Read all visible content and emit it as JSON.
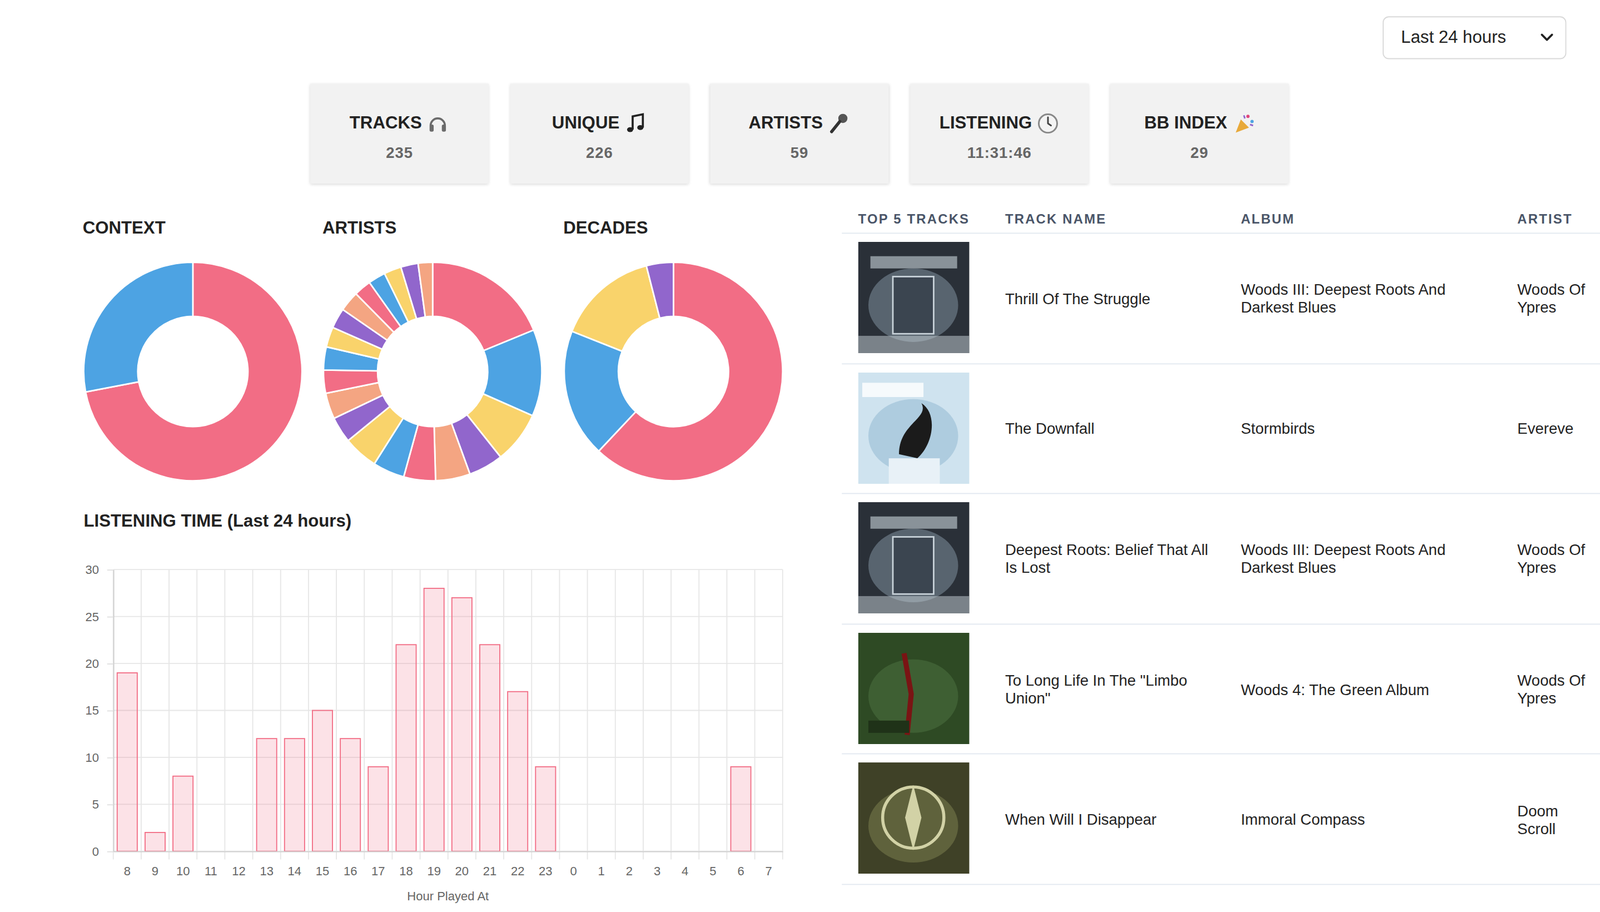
{
  "filter": "Last 24 hours",
  "stats": [
    {
      "label": "TRACKS",
      "value": 235
    },
    {
      "label": "UNIQUE",
      "value": 226
    },
    {
      "label": "ARTISTS",
      "value": 59
    },
    {
      "label": "LISTENING",
      "value": "11:31:46"
    },
    {
      "label": "BB INDEX",
      "value": 29
    }
  ],
  "chart_data": [
    {
      "type": "doughnut",
      "title": "CONTEXT",
      "values": [
        72,
        28
      ],
      "colors": [
        "#f26d85",
        "#4da3e3"
      ]
    },
    {
      "type": "doughnut",
      "title": "ARTISTS",
      "values": [
        44,
        30,
        18,
        12,
        12,
        11,
        11,
        12,
        9,
        9,
        8,
        8,
        7,
        7,
        7,
        6,
        6,
        6,
        6,
        5
      ],
      "colors": [
        "#f26d85",
        "#4da3e3",
        "#f9d36b",
        "#9166cc",
        "#f4a582",
        "#f26d85",
        "#4da3e3",
        "#f9d36b",
        "#9166cc",
        "#f4a582",
        "#f26d85",
        "#4da3e3",
        "#f9d36b",
        "#9166cc",
        "#f4a582",
        "#f26d85",
        "#4da3e3",
        "#f9d36b",
        "#9166cc",
        "#f4a582"
      ]
    },
    {
      "type": "doughnut",
      "title": "DECADES",
      "values": [
        62,
        19,
        15,
        4
      ],
      "colors": [
        "#f26d85",
        "#4da3e3",
        "#f9d36b",
        "#9166cc"
      ]
    },
    {
      "type": "bar",
      "title": "LISTENING TIME (Last 24 hours)",
      "x_label": "Hour Played At",
      "categories": [
        "8",
        "9",
        "10",
        "11",
        "12",
        "13",
        "14",
        "15",
        "16",
        "17",
        "18",
        "19",
        "20",
        "21",
        "22",
        "23",
        "0",
        "1",
        "2",
        "3",
        "4",
        "5",
        "6",
        "7"
      ],
      "values": [
        19,
        2,
        8,
        0,
        0,
        12,
        12,
        15,
        12,
        9,
        22,
        28,
        27,
        22,
        17,
        9,
        0,
        0,
        0,
        0,
        0,
        0,
        9,
        0
      ],
      "color": "#f26d85",
      "ylim": [
        0,
        30
      ],
      "yticks": [
        0,
        5,
        10,
        15,
        20,
        25,
        30
      ],
      "grid": true
    }
  ],
  "table": {
    "header": [
      "TOP 5 TRACKS",
      "TRACK NAME",
      "ALBUM",
      "ARTIST"
    ],
    "rows": [
      [
        "Thrill Of The Struggle",
        "Woods III: Deepest Roots And Darkest Blues",
        "Woods Of Ypres"
      ],
      [
        "The Downfall",
        "Stormbirds",
        "Evereve"
      ],
      [
        "Deepest Roots: Belief That All Is Lost",
        "Woods III: Deepest Roots And Darkest Blues",
        "Woods Of Ypres"
      ],
      [
        "To Long Life In The \"Limbo Union\"",
        "Woods 4: The Green Album",
        "Woods Of Ypres"
      ],
      [
        "When Will I Disappear",
        "Immoral Compass",
        "Doom Scroll"
      ]
    ]
  }
}
